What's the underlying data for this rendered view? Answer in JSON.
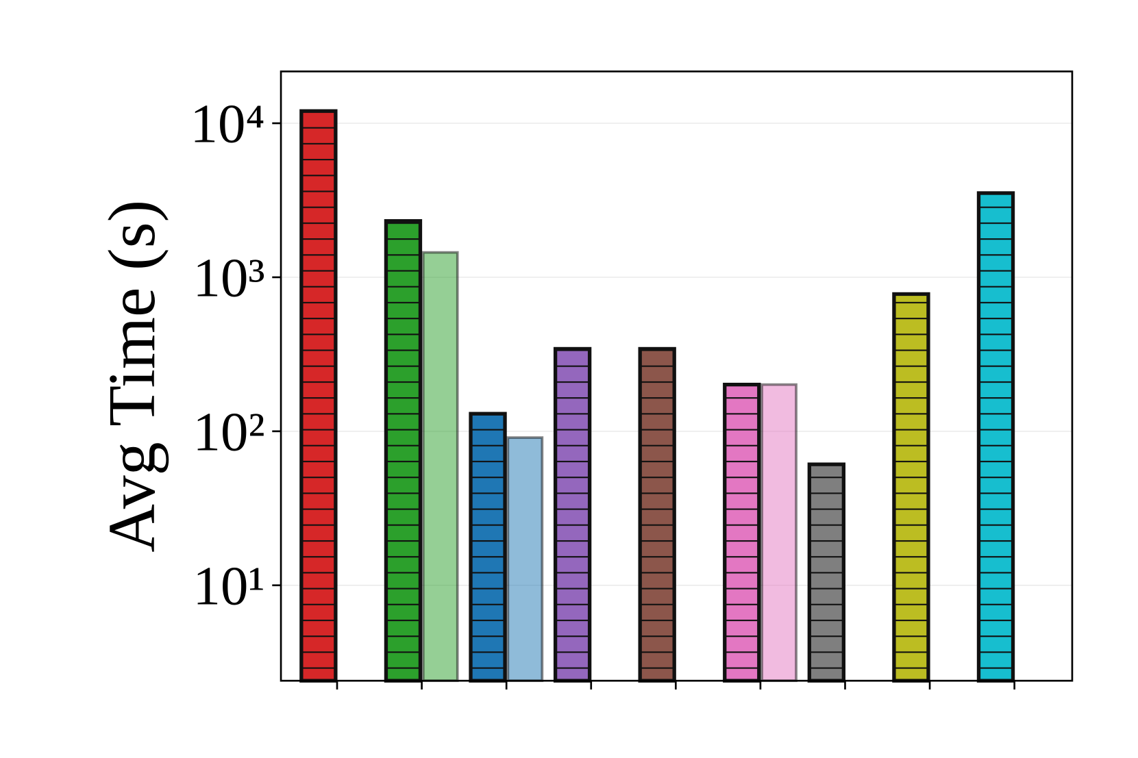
{
  "chart_data": {
    "type": "bar",
    "ylabel": "Avg Time (s)",
    "log_y": true,
    "grid": true,
    "categories": [
      null,
      null,
      null,
      null,
      null,
      null,
      null,
      null,
      null
    ],
    "series": [
      {
        "values": [
          12000,
          2320,
          130,
          343,
          343,
          201,
          61,
          778,
          3520
        ],
        "colors": [
          "#d62728",
          "#2ca02c",
          "#1f77b4",
          "#9467bd",
          "#8c564b",
          "#e377c2",
          "#7f7f7f",
          "#bcbd22",
          "#17becf"
        ],
        "hatch": true,
        "alpha": 1
      },
      {
        "values": [
          null,
          1450,
          91,
          null,
          null,
          201,
          null,
          null,
          null
        ],
        "colors": [
          "#d62728",
          "#2ca02c",
          "#1f77b4",
          "#9467bd",
          "#8c564b",
          "#e377c2",
          "#7f7f7f",
          "#bcbd22",
          "#17becf"
        ],
        "hatch": false,
        "alpha": 0.5
      }
    ],
    "ylim": [
      2.4,
      21700
    ],
    "yticks": [
      {
        "value": 10,
        "label": "10¹"
      },
      {
        "value": 100,
        "label": "10²"
      },
      {
        "value": 1000,
        "label": "10³"
      },
      {
        "value": 10000,
        "label": "10⁴"
      }
    ]
  }
}
